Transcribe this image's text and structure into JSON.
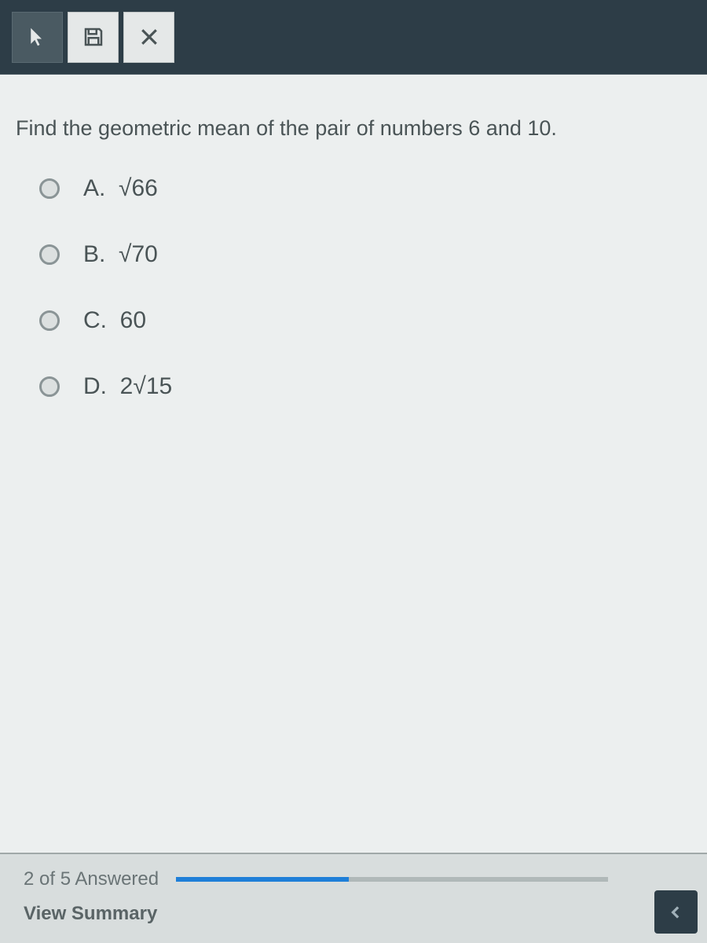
{
  "question": {
    "text": "Find the geometric mean of the pair of numbers 6 and 10.",
    "options": [
      {
        "letter": "A.",
        "value": "√66"
      },
      {
        "letter": "B.",
        "value": "√70"
      },
      {
        "letter": "C.",
        "value": "60"
      },
      {
        "letter": "D.",
        "value": "2√15"
      }
    ]
  },
  "footer": {
    "progress_text": "2 of 5 Answered",
    "progress_percent": 40,
    "summary_label": "View Summary"
  },
  "colors": {
    "toolbar_bg": "#2d3d47",
    "content_bg": "#ecefef",
    "text": "#4a5456",
    "progress_fill": "#1f7fd8"
  }
}
